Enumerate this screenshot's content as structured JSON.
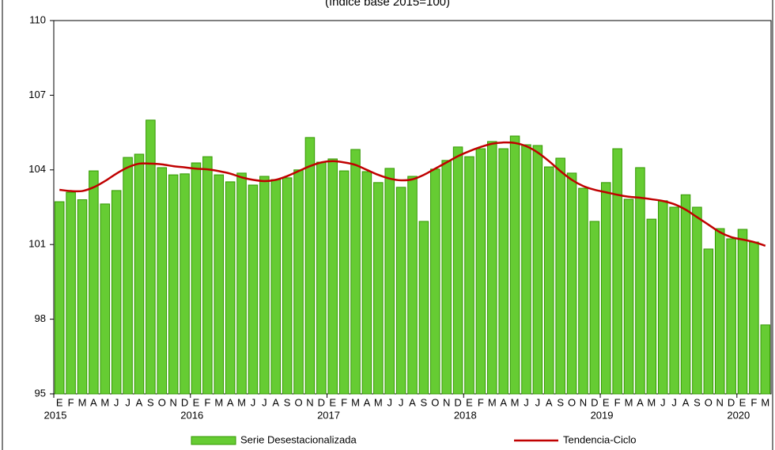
{
  "chart_data": {
    "type": "bar-line",
    "subtitle": "(índice base 2015=100)",
    "categories": [
      "E",
      "F",
      "M",
      "A",
      "M",
      "J",
      "J",
      "A",
      "S",
      "O",
      "N",
      "D",
      "E",
      "F",
      "M",
      "A",
      "M",
      "J",
      "J",
      "A",
      "S",
      "O",
      "N",
      "D",
      "E",
      "F",
      "M",
      "A",
      "M",
      "J",
      "J",
      "A",
      "S",
      "O",
      "N",
      "D",
      "E",
      "F",
      "M",
      "A",
      "M",
      "J",
      "J",
      "A",
      "S",
      "O",
      "N",
      "D",
      "E",
      "F",
      "M",
      "A",
      "M",
      "J",
      "J",
      "A",
      "S",
      "O",
      "N",
      "D",
      "E",
      "F",
      "M"
    ],
    "years": [
      "2015",
      "2016",
      "2017",
      "2018",
      "2019",
      "2020"
    ],
    "series": [
      {
        "name": "Serie Desestacionalizada",
        "type": "bar",
        "color": "#66cc33",
        "stroke": "#339900",
        "values": [
          102.72,
          103.1,
          102.8,
          103.96,
          102.63,
          103.17,
          104.5,
          104.63,
          106.0,
          104.09,
          103.8,
          103.84,
          104.28,
          104.53,
          103.8,
          103.52,
          103.87,
          103.39,
          103.74,
          103.61,
          103.68,
          104.0,
          105.3,
          104.31,
          104.44,
          103.96,
          104.82,
          103.93,
          103.49,
          104.06,
          103.3,
          103.74,
          101.93,
          104.03,
          104.38,
          104.92,
          104.53,
          104.85,
          105.14,
          104.85,
          105.36,
          105.01,
          104.98,
          104.12,
          104.47,
          103.87,
          103.26,
          101.93,
          103.49,
          104.85,
          102.82,
          104.09,
          102.02,
          102.76,
          102.5,
          103.0,
          102.5,
          100.82,
          101.64,
          101.23,
          101.61,
          101.1,
          97.77
        ]
      },
      {
        "name": "Tendencia-Ciclo",
        "type": "line",
        "color": "#c00000",
        "values": [
          103.2,
          103.15,
          103.15,
          103.3,
          103.55,
          103.85,
          104.1,
          104.25,
          104.25,
          104.22,
          104.15,
          104.1,
          104.05,
          104.02,
          103.95,
          103.85,
          103.7,
          103.6,
          103.55,
          103.6,
          103.75,
          103.95,
          104.15,
          104.3,
          104.35,
          104.3,
          104.2,
          104.0,
          103.8,
          103.65,
          103.58,
          103.62,
          103.8,
          104.05,
          104.3,
          104.55,
          104.75,
          104.92,
          105.05,
          105.1,
          105.08,
          104.95,
          104.7,
          104.35,
          103.95,
          103.6,
          103.35,
          103.2,
          103.1,
          103.0,
          102.92,
          102.88,
          102.82,
          102.75,
          102.62,
          102.4,
          102.1,
          101.8,
          101.5,
          101.3,
          101.2,
          101.1,
          100.95
        ]
      }
    ],
    "ylim": [
      95,
      110
    ],
    "yticks": [
      95,
      98,
      101,
      104,
      107,
      110
    ],
    "grid": false
  }
}
